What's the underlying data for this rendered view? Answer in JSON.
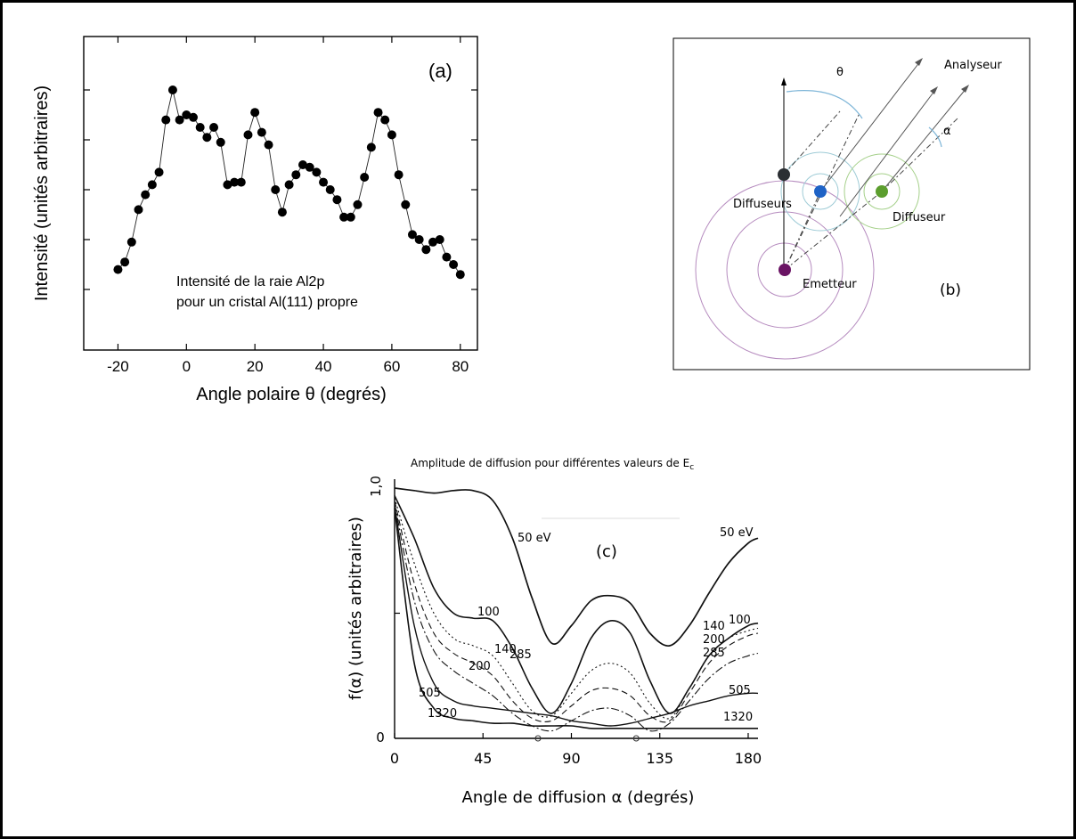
{
  "panel_a": {
    "label": "(a)",
    "annotation_line1": "Intensité de la raie Al2p",
    "annotation_line2": "pour un cristal Al(111) propre"
  },
  "panel_b": {
    "label": "(b)",
    "analyseur": "Analyseur",
    "theta": "θ",
    "alpha": "α",
    "diffuseurs": "Diffuseurs",
    "diffuseur": "Diffuseur",
    "emetteur": "Emetteur",
    "colors": {
      "diffuseur_black": "#2b2f33",
      "diffuseur_blue": "#1f63c6",
      "diffuseur_green": "#5c9e2e",
      "emetteur": "#6a1464",
      "rings_emetteur": "#b68cbf",
      "rings_diffuseur": "#9ecbd6",
      "rings_green": "#a5d08a"
    }
  },
  "panel_c": {
    "label": "(c)",
    "title": "Amplitude de diffusion pour différentes valeurs de E",
    "title_sub": "c",
    "curve_labels": {
      "e50_top": "50 eV",
      "e50_right": "50 eV",
      "e100_left": "100",
      "e100_right": "100",
      "e140_left": "140",
      "e140_right": "140",
      "e200_left": "200",
      "e200_right": "200",
      "e285_left": "285",
      "e285_right": "285",
      "e505_left": "505",
      "e505_right": "505",
      "e1320_left": "1320",
      "e1320_right": "1320"
    }
  },
  "chart_data": [
    {
      "type": "scatter",
      "title": "",
      "xlabel": "Angle polaire θ (degrés)",
      "ylabel": "Intensité (unités arbitraires)",
      "xlim": [
        -30,
        85
      ],
      "ylim": [
        0,
        1
      ],
      "xticks": [
        -20,
        0,
        20,
        40,
        60,
        80
      ],
      "x": [
        -20,
        -18,
        -16,
        -14,
        -12,
        -10,
        -8,
        -6,
        -4,
        -2,
        0,
        2,
        4,
        6,
        8,
        10,
        12,
        14,
        16,
        18,
        20,
        22,
        24,
        26,
        28,
        30,
        32,
        34,
        36,
        38,
        40,
        42,
        44,
        46,
        48,
        50,
        52,
        54,
        56,
        58,
        60,
        62,
        64,
        66,
        68,
        70,
        72,
        74,
        76,
        78,
        80
      ],
      "y": [
        0.18,
        0.21,
        0.29,
        0.42,
        0.48,
        0.52,
        0.57,
        0.78,
        0.9,
        0.78,
        0.8,
        0.79,
        0.75,
        0.71,
        0.75,
        0.69,
        0.52,
        0.53,
        0.53,
        0.72,
        0.81,
        0.73,
        0.68,
        0.5,
        0.41,
        0.52,
        0.56,
        0.6,
        0.59,
        0.57,
        0.53,
        0.5,
        0.46,
        0.39,
        0.39,
        0.44,
        0.55,
        0.67,
        0.81,
        0.78,
        0.72,
        0.56,
        0.44,
        0.32,
        0.3,
        0.26,
        0.29,
        0.3,
        0.23,
        0.2,
        0.16
      ]
    },
    {
      "type": "line",
      "title": "Amplitude de diffusion pour différentes valeurs de Ec",
      "xlabel": "Angle de diffusion α (degrés)",
      "ylabel": "f(α) (unités arbitraires)",
      "xlim": [
        0,
        185
      ],
      "ylim": [
        0,
        1.0
      ],
      "xticks": [
        0,
        45,
        90,
        135,
        180
      ],
      "yticks": [
        "0",
        "1,0"
      ],
      "series": [
        {
          "name": "50 eV",
          "x": [
            0,
            10,
            20,
            30,
            40,
            50,
            60,
            70,
            80,
            90,
            100,
            110,
            120,
            130,
            140,
            150,
            160,
            170,
            180,
            185
          ],
          "y": [
            1.0,
            0.99,
            0.98,
            0.99,
            0.99,
            0.95,
            0.8,
            0.56,
            0.38,
            0.45,
            0.55,
            0.57,
            0.54,
            0.42,
            0.37,
            0.45,
            0.58,
            0.7,
            0.78,
            0.8
          ]
        },
        {
          "name": "100",
          "x": [
            0,
            10,
            20,
            30,
            40,
            50,
            60,
            70,
            80,
            90,
            100,
            110,
            120,
            130,
            140,
            150,
            160,
            170,
            180,
            185
          ],
          "y": [
            0.97,
            0.8,
            0.6,
            0.5,
            0.48,
            0.47,
            0.36,
            0.2,
            0.1,
            0.22,
            0.4,
            0.47,
            0.42,
            0.23,
            0.1,
            0.2,
            0.33,
            0.4,
            0.45,
            0.46
          ]
        },
        {
          "name": "140",
          "x": [
            0,
            10,
            20,
            30,
            40,
            50,
            60,
            70,
            80,
            90,
            100,
            110,
            120,
            130,
            140,
            150,
            160,
            170,
            180,
            185
          ],
          "y": [
            0.96,
            0.7,
            0.5,
            0.4,
            0.37,
            0.33,
            0.22,
            0.11,
            0.09,
            0.18,
            0.27,
            0.3,
            0.26,
            0.14,
            0.08,
            0.2,
            0.33,
            0.4,
            0.43,
            0.44
          ]
        },
        {
          "name": "200",
          "x": [
            0,
            10,
            20,
            30,
            40,
            50,
            60,
            70,
            80,
            90,
            100,
            110,
            120,
            130,
            140,
            150,
            160,
            170,
            180,
            185
          ],
          "y": [
            0.95,
            0.62,
            0.42,
            0.34,
            0.3,
            0.25,
            0.15,
            0.08,
            0.07,
            0.13,
            0.19,
            0.2,
            0.17,
            0.09,
            0.07,
            0.18,
            0.3,
            0.37,
            0.41,
            0.42
          ]
        },
        {
          "name": "285",
          "x": [
            0,
            10,
            20,
            30,
            40,
            50,
            60,
            70,
            80,
            90,
            100,
            110,
            120,
            130,
            140,
            150,
            160,
            170,
            180,
            185
          ],
          "y": [
            0.94,
            0.55,
            0.35,
            0.27,
            0.22,
            0.17,
            0.1,
            0.05,
            0.03,
            0.07,
            0.11,
            0.12,
            0.09,
            0.03,
            0.06,
            0.15,
            0.24,
            0.3,
            0.33,
            0.34
          ]
        },
        {
          "name": "505",
          "x": [
            0,
            10,
            20,
            30,
            40,
            50,
            60,
            70,
            80,
            90,
            100,
            110,
            120,
            130,
            140,
            150,
            160,
            170,
            180,
            185
          ],
          "y": [
            0.93,
            0.45,
            0.22,
            0.15,
            0.13,
            0.12,
            0.11,
            0.1,
            0.09,
            0.07,
            0.06,
            0.05,
            0.06,
            0.08,
            0.1,
            0.13,
            0.15,
            0.17,
            0.18,
            0.18
          ]
        },
        {
          "name": "1320",
          "x": [
            0,
            10,
            20,
            30,
            40,
            50,
            60,
            70,
            80,
            90,
            100,
            110,
            120,
            130,
            140,
            150,
            160,
            170,
            180,
            185
          ],
          "y": [
            0.92,
            0.3,
            0.12,
            0.08,
            0.07,
            0.06,
            0.06,
            0.05,
            0.05,
            0.05,
            0.04,
            0.04,
            0.04,
            0.04,
            0.04,
            0.04,
            0.04,
            0.04,
            0.04,
            0.04
          ]
        }
      ]
    }
  ]
}
